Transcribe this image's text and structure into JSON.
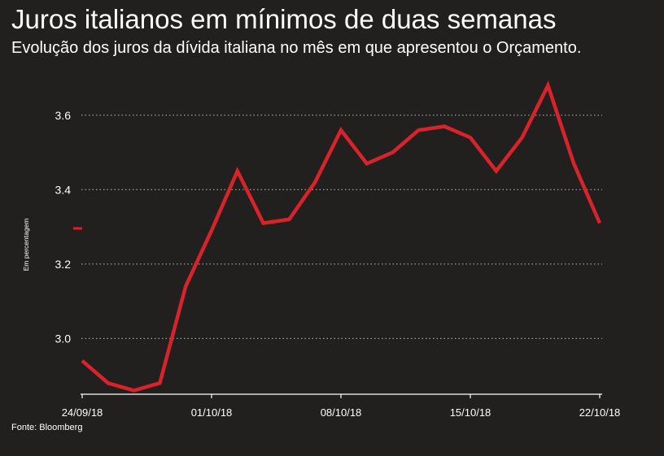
{
  "title": "Juros italianos em mínimos de duas semanas",
  "subtitle": "Evolução dos juros da dívida italiana no mês em que apresentou o Orçamento.",
  "source": "Fonte: Bloomberg",
  "colors": {
    "background": "#221f1f",
    "line": "#d8232a",
    "grid": "#bdbdbd",
    "text": "#ffffff"
  },
  "chart_data": {
    "type": "line",
    "ylabel": "Em percentagem",
    "xlabel": "",
    "ylim": [
      2.85,
      3.7
    ],
    "yticks": [
      3.0,
      3.2,
      3.4,
      3.6
    ],
    "ytick_labels": [
      "3.0",
      "3.2",
      "3.4",
      "3.6"
    ],
    "grid": "horizontal-dotted",
    "legend": "none",
    "xticks": [
      {
        "index": 0,
        "label": "24/09/18"
      },
      {
        "index": 5,
        "label": "01/10/18"
      },
      {
        "index": 10,
        "label": "08/10/18"
      },
      {
        "index": 15,
        "label": "15/10/18"
      },
      {
        "index": 20,
        "label": "22/10/18"
      }
    ],
    "series": [
      {
        "values": [
          2.94,
          2.88,
          2.86,
          2.88,
          3.14,
          3.29,
          3.45,
          3.31,
          3.32,
          3.42,
          3.56,
          3.47,
          3.5,
          3.56,
          3.57,
          3.54,
          3.45,
          3.54,
          3.68,
          3.47,
          3.31
        ]
      }
    ]
  }
}
